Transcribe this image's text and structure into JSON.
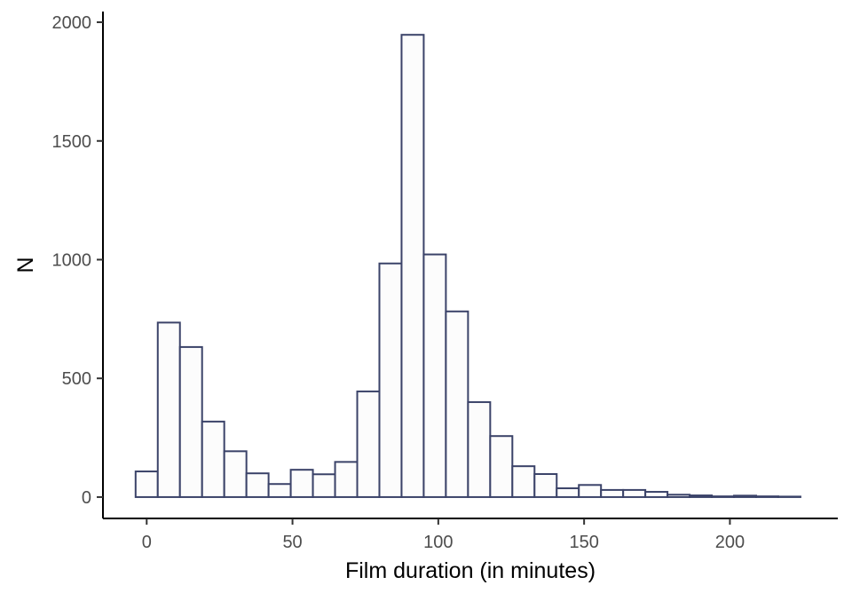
{
  "chart_data": {
    "type": "bar",
    "xlabel": "Film duration (in minutes)",
    "ylabel": "N",
    "bin_width": 7.6,
    "bin_starts": [
      -3.8,
      3.8,
      11.4,
      19.0,
      26.6,
      34.2,
      41.8,
      49.4,
      57.0,
      64.6,
      72.2,
      79.8,
      87.4,
      95.0,
      102.6,
      110.2,
      117.8,
      125.4,
      133.0,
      140.6,
      148.2,
      155.8,
      163.4,
      171.0,
      178.6,
      186.2,
      193.8,
      201.4,
      209.0,
      216.6
    ],
    "values": [
      108,
      735,
      632,
      318,
      193,
      100,
      55,
      115,
      96,
      148,
      445,
      984,
      1947,
      1022,
      782,
      400,
      257,
      130,
      97,
      37,
      51,
      30,
      30,
      22,
      10,
      7,
      3,
      6,
      3,
      2
    ],
    "xlim": [
      -15,
      237
    ],
    "ylim": [
      -90,
      2045
    ],
    "x_ticks": [
      0,
      50,
      100,
      150,
      200
    ],
    "x_tick_labels": [
      "0",
      "50",
      "100",
      "150",
      "200"
    ],
    "y_ticks": [
      0,
      500,
      1000,
      1500,
      2000
    ],
    "y_tick_labels": [
      "0",
      "500",
      "1000",
      "1500",
      "2000"
    ],
    "grid": false,
    "legend": "none",
    "colors": {
      "bar_fill": "#fcfcfc",
      "bar_stroke": "#3b4369",
      "axis": "#000000",
      "tick_label": "#4d4d4d"
    }
  }
}
